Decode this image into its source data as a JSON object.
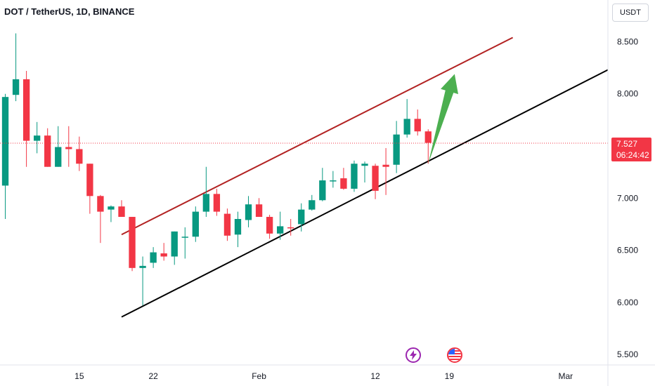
{
  "header": {
    "title": "DOT / TetherUS, 1D, BINANCE",
    "currency": "USDT"
  },
  "price_badge": {
    "price": "7.527",
    "countdown": "06:24:42"
  },
  "colors": {
    "up": "#089981",
    "down": "#f23645",
    "upper_line": "#b22222",
    "lower_line": "#000000",
    "arrow": "#4caf50",
    "axis_text": "#131722",
    "grid": "#e0e3eb"
  },
  "icons": [
    "lightning-event-icon",
    "us-flag-event-icon"
  ],
  "chart_data": {
    "type": "candlestick",
    "title": "DOT / TetherUS, 1D, BINANCE",
    "y_axis": {
      "ticks": [
        "8.500",
        "8.000",
        "7.500",
        "7.000",
        "6.500",
        "6.000",
        "5.500"
      ],
      "ylim": [
        5.4,
        8.9
      ]
    },
    "x_axis": {
      "ticks": [
        {
          "label": "15",
          "day": 15
        },
        {
          "label": "22",
          "day": 22
        },
        {
          "label": "Feb",
          "day": 32
        },
        {
          "label": "12",
          "day": 43
        },
        {
          "label": "19",
          "day": 50
        },
        {
          "label": "Mar",
          "day": 61
        }
      ],
      "xlim": [
        7.5,
        65
      ]
    },
    "last_price": 7.527,
    "candles": [
      {
        "day": 8,
        "o": 7.12,
        "h": 8.0,
        "l": 6.8,
        "c": 7.97
      },
      {
        "day": 9,
        "o": 7.99,
        "h": 8.58,
        "l": 7.93,
        "c": 8.14
      },
      {
        "day": 10,
        "o": 8.14,
        "h": 8.22,
        "l": 7.3,
        "c": 7.55
      },
      {
        "day": 11,
        "o": 7.55,
        "h": 7.73,
        "l": 7.43,
        "c": 7.6
      },
      {
        "day": 12,
        "o": 7.6,
        "h": 7.67,
        "l": 7.3,
        "c": 7.3
      },
      {
        "day": 13,
        "o": 7.3,
        "h": 7.69,
        "l": 7.3,
        "c": 7.49
      },
      {
        "day": 14,
        "o": 7.49,
        "h": 7.69,
        "l": 7.3,
        "c": 7.47
      },
      {
        "day": 15,
        "o": 7.47,
        "h": 7.59,
        "l": 7.26,
        "c": 7.33
      },
      {
        "day": 16,
        "o": 7.33,
        "h": 7.33,
        "l": 6.85,
        "c": 7.02
      },
      {
        "day": 17,
        "o": 7.02,
        "h": 7.03,
        "l": 6.57,
        "c": 6.87
      },
      {
        "day": 18,
        "o": 6.89,
        "h": 6.93,
        "l": 6.77,
        "c": 6.92
      },
      {
        "day": 19,
        "o": 6.92,
        "h": 6.98,
        "l": 6.82,
        "c": 6.82
      },
      {
        "day": 20,
        "o": 6.82,
        "h": 6.82,
        "l": 6.3,
        "c": 6.33
      },
      {
        "day": 21,
        "o": 6.33,
        "h": 6.44,
        "l": 5.97,
        "c": 6.35
      },
      {
        "day": 22,
        "o": 6.38,
        "h": 6.53,
        "l": 6.33,
        "c": 6.48
      },
      {
        "day": 23,
        "o": 6.47,
        "h": 6.57,
        "l": 6.4,
        "c": 6.44
      },
      {
        "day": 24,
        "o": 6.44,
        "h": 6.68,
        "l": 6.36,
        "c": 6.68
      },
      {
        "day": 25,
        "o": 6.63,
        "h": 6.72,
        "l": 6.42,
        "c": 6.63
      },
      {
        "day": 26,
        "o": 6.63,
        "h": 6.92,
        "l": 6.58,
        "c": 6.87
      },
      {
        "day": 27,
        "o": 6.87,
        "h": 7.3,
        "l": 6.82,
        "c": 7.04
      },
      {
        "day": 28,
        "o": 7.04,
        "h": 7.09,
        "l": 6.83,
        "c": 6.87
      },
      {
        "day": 29,
        "o": 6.85,
        "h": 6.9,
        "l": 6.59,
        "c": 6.64
      },
      {
        "day": 30,
        "o": 6.65,
        "h": 6.87,
        "l": 6.53,
        "c": 6.8
      },
      {
        "day": 31,
        "o": 6.79,
        "h": 7.02,
        "l": 6.72,
        "c": 6.94
      },
      {
        "day": 32,
        "o": 6.94,
        "h": 7.0,
        "l": 6.83,
        "c": 6.82
      },
      {
        "day": 33,
        "o": 6.82,
        "h": 6.84,
        "l": 6.61,
        "c": 6.66
      },
      {
        "day": 34,
        "o": 6.66,
        "h": 6.87,
        "l": 6.6,
        "c": 6.73
      },
      {
        "day": 35,
        "o": 6.72,
        "h": 6.8,
        "l": 6.64,
        "c": 6.71
      },
      {
        "day": 36,
        "o": 6.75,
        "h": 6.95,
        "l": 6.68,
        "c": 6.89
      },
      {
        "day": 37,
        "o": 6.89,
        "h": 7.03,
        "l": 6.88,
        "c": 6.98
      },
      {
        "day": 38,
        "o": 6.98,
        "h": 7.29,
        "l": 6.97,
        "c": 7.17
      },
      {
        "day": 39,
        "o": 7.17,
        "h": 7.26,
        "l": 7.1,
        "c": 7.17
      },
      {
        "day": 40,
        "o": 7.19,
        "h": 7.29,
        "l": 7.08,
        "c": 7.09
      },
      {
        "day": 41,
        "o": 7.09,
        "h": 7.36,
        "l": 7.06,
        "c": 7.33
      },
      {
        "day": 42,
        "o": 7.31,
        "h": 7.35,
        "l": 7.15,
        "c": 7.33
      },
      {
        "day": 43,
        "o": 7.31,
        "h": 7.33,
        "l": 6.99,
        "c": 7.07
      },
      {
        "day": 44,
        "o": 7.32,
        "h": 7.48,
        "l": 7.03,
        "c": 7.3
      },
      {
        "day": 45,
        "o": 7.32,
        "h": 7.74,
        "l": 7.24,
        "c": 7.61
      },
      {
        "day": 46,
        "o": 7.61,
        "h": 7.95,
        "l": 7.58,
        "c": 7.76
      },
      {
        "day": 47,
        "o": 7.76,
        "h": 7.85,
        "l": 7.6,
        "c": 7.64
      },
      {
        "day": 48,
        "o": 7.64,
        "h": 7.66,
        "l": 7.33,
        "c": 7.53
      }
    ],
    "trendlines": [
      {
        "name": "upper",
        "from": {
          "day": 19,
          "price": 6.65
        },
        "to": {
          "day": 56,
          "price": 8.54
        }
      },
      {
        "name": "lower",
        "from": {
          "day": 19,
          "price": 5.86
        },
        "to": {
          "day": 65,
          "price": 8.23
        }
      }
    ],
    "projection_arrow": {
      "from": {
        "day": 48,
        "price": 7.33
      },
      "to": {
        "day": 50.5,
        "price": 8.19
      }
    },
    "event_marks": [
      {
        "type": "lightning",
        "day": 47.4
      },
      {
        "type": "flag",
        "day": 51.8
      }
    ]
  }
}
